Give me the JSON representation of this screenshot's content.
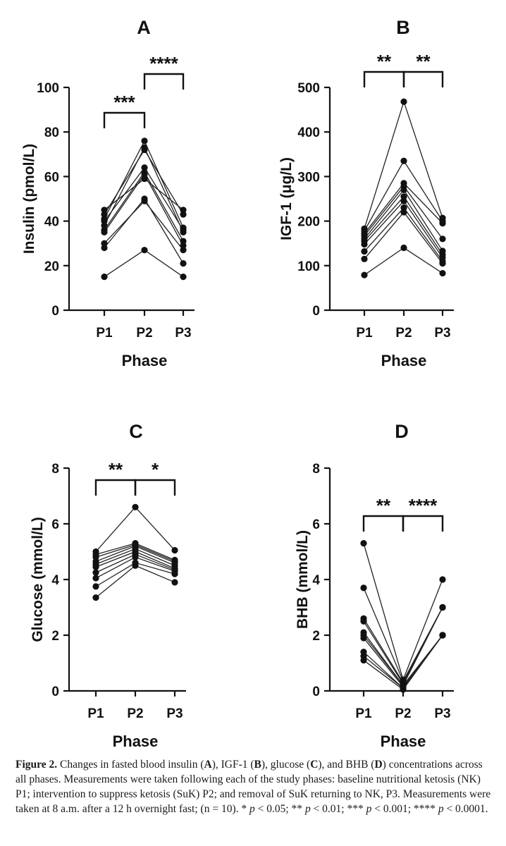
{
  "chart_data": [
    {
      "panel": "A",
      "type": "line",
      "title": "A",
      "xlabel": "Phase",
      "ylabel": "Insulin (pmol/L)",
      "categories": [
        "P1",
        "P2",
        "P3"
      ],
      "ylim": [
        0,
        100
      ],
      "yticks": [
        0,
        20,
        40,
        60,
        80,
        100
      ],
      "subjects": [
        [
          15,
          27,
          15
        ],
        [
          28,
          50,
          21
        ],
        [
          30,
          49,
          27
        ],
        [
          35,
          61,
          29
        ],
        [
          36,
          62,
          31
        ],
        [
          38,
          73,
          35
        ],
        [
          40,
          64,
          36
        ],
        [
          41,
          76,
          37
        ],
        [
          43,
          72,
          43
        ],
        [
          45,
          59,
          45
        ]
      ],
      "significance": [
        {
          "from": "P1",
          "to": "P2",
          "label": "***"
        },
        {
          "from": "P2",
          "to": "P3",
          "label": "****"
        }
      ]
    },
    {
      "panel": "B",
      "type": "line",
      "title": "B",
      "xlabel": "Phase",
      "ylabel": "IGF-1 (μg/L)",
      "categories": [
        "P1",
        "P2",
        "P3"
      ],
      "ylim": [
        0,
        500
      ],
      "yticks": [
        0,
        100,
        200,
        300,
        400,
        500
      ],
      "subjects": [
        [
          79,
          140,
          83
        ],
        [
          115,
          220,
          105
        ],
        [
          132,
          230,
          110
        ],
        [
          148,
          245,
          118
        ],
        [
          155,
          255,
          125
        ],
        [
          160,
          270,
          133
        ],
        [
          167,
          278,
          160
        ],
        [
          172,
          285,
          195
        ],
        [
          178,
          335,
          200
        ],
        [
          183,
          468,
          207
        ]
      ],
      "significance": [
        {
          "from": "P1",
          "to": "P2",
          "label": "**"
        },
        {
          "from": "P2",
          "to": "P3",
          "label": "**"
        }
      ]
    },
    {
      "panel": "C",
      "type": "line",
      "title": "C",
      "xlabel": "Phase",
      "ylabel": "Glucose (mmol/L)",
      "categories": [
        "P1",
        "P2",
        "P3"
      ],
      "ylim": [
        0,
        8
      ],
      "yticks": [
        0,
        2,
        4,
        6,
        8
      ],
      "subjects": [
        [
          3.35,
          4.5,
          3.9
        ],
        [
          3.75,
          4.6,
          4.2
        ],
        [
          4.05,
          4.8,
          4.3
        ],
        [
          4.25,
          4.9,
          4.35
        ],
        [
          4.45,
          5.0,
          4.4
        ],
        [
          4.55,
          5.1,
          4.5
        ],
        [
          4.65,
          5.2,
          4.6
        ],
        [
          4.8,
          5.25,
          4.65
        ],
        [
          4.9,
          5.3,
          4.7
        ],
        [
          5.0,
          6.6,
          5.05
        ]
      ],
      "significance": [
        {
          "from": "P1",
          "to": "P2",
          "label": "**"
        },
        {
          "from": "P2",
          "to": "P3",
          "label": "*"
        }
      ]
    },
    {
      "panel": "D",
      "type": "line",
      "title": "D",
      "xlabel": "Phase",
      "ylabel": "BHB (mmol/L)",
      "categories": [
        "P1",
        "P2",
        "P3"
      ],
      "ylim": [
        0,
        8
      ],
      "yticks": [
        0,
        2,
        4,
        6,
        8
      ],
      "subjects": [
        [
          1.1,
          0.05,
          2.0
        ],
        [
          1.25,
          0.1,
          2.0
        ],
        [
          1.4,
          0.1,
          2.0
        ],
        [
          1.9,
          0.15,
          2.0
        ],
        [
          2.0,
          0.2,
          2.0
        ],
        [
          2.1,
          0.2,
          3.0
        ],
        [
          2.5,
          0.25,
          3.0
        ],
        [
          2.6,
          0.3,
          3.0
        ],
        [
          3.7,
          0.35,
          3.0
        ],
        [
          5.3,
          0.4,
          4.0
        ]
      ],
      "significance": [
        {
          "from": "P1",
          "to": "P2",
          "label": "**"
        },
        {
          "from": "P2",
          "to": "P3",
          "label": "****"
        }
      ]
    }
  ],
  "caption": {
    "figure_label": "Figure 2.",
    "text_1": " Changes in fasted blood insulin (",
    "a": "A",
    "text_2": "), IGF-1 (",
    "b": "B",
    "text_3": "), glucose (",
    "c": "C",
    "text_4": "), and BHB (",
    "d": "D",
    "text_5": ") concentrations across all phases. Measurements were taken following each of the study phases: baseline nutritional ketosis (NK) P1; intervention to suppress ketosis (SuK) P2; and removal of SuK returning to NK, P3. Measurements were taken at 8 a.m. after a 12 h overnight fast; (n = 10). * ",
    "p1": "p",
    "text_6": " < 0.05; ** ",
    "p2": "p",
    "text_7": " < 0.01; *** ",
    "p3": "p",
    "text_8": " < 0.001; **** ",
    "p4": "p",
    "text_9": " < 0.0001."
  }
}
